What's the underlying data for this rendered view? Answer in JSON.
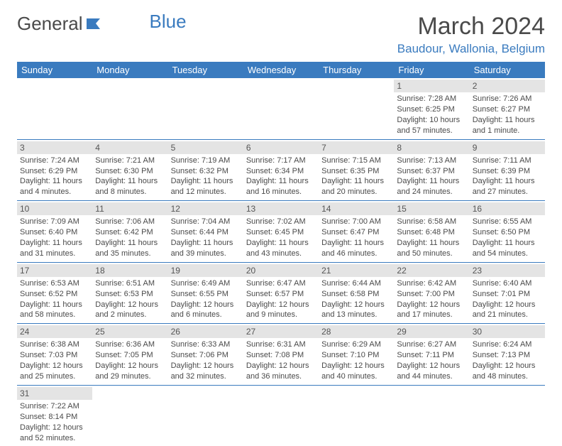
{
  "logo": {
    "text1": "General",
    "text2": "Blue"
  },
  "title": "March 2024",
  "location": "Baudour, Wallonia, Belgium",
  "colors": {
    "header_bg": "#3a7bbf",
    "header_text": "#ffffff",
    "daynum_bg": "#e4e4e4",
    "border": "#3a7bbf",
    "text": "#4a4a4a",
    "accent": "#3a7bbf"
  },
  "weekdays": [
    "Sunday",
    "Monday",
    "Tuesday",
    "Wednesday",
    "Thursday",
    "Friday",
    "Saturday"
  ],
  "weeks": [
    [
      null,
      null,
      null,
      null,
      null,
      {
        "n": "1",
        "sr": "Sunrise: 7:28 AM",
        "ss": "Sunset: 6:25 PM",
        "d1": "Daylight: 10 hours",
        "d2": "and 57 minutes."
      },
      {
        "n": "2",
        "sr": "Sunrise: 7:26 AM",
        "ss": "Sunset: 6:27 PM",
        "d1": "Daylight: 11 hours",
        "d2": "and 1 minute."
      }
    ],
    [
      {
        "n": "3",
        "sr": "Sunrise: 7:24 AM",
        "ss": "Sunset: 6:29 PM",
        "d1": "Daylight: 11 hours",
        "d2": "and 4 minutes."
      },
      {
        "n": "4",
        "sr": "Sunrise: 7:21 AM",
        "ss": "Sunset: 6:30 PM",
        "d1": "Daylight: 11 hours",
        "d2": "and 8 minutes."
      },
      {
        "n": "5",
        "sr": "Sunrise: 7:19 AM",
        "ss": "Sunset: 6:32 PM",
        "d1": "Daylight: 11 hours",
        "d2": "and 12 minutes."
      },
      {
        "n": "6",
        "sr": "Sunrise: 7:17 AM",
        "ss": "Sunset: 6:34 PM",
        "d1": "Daylight: 11 hours",
        "d2": "and 16 minutes."
      },
      {
        "n": "7",
        "sr": "Sunrise: 7:15 AM",
        "ss": "Sunset: 6:35 PM",
        "d1": "Daylight: 11 hours",
        "d2": "and 20 minutes."
      },
      {
        "n": "8",
        "sr": "Sunrise: 7:13 AM",
        "ss": "Sunset: 6:37 PM",
        "d1": "Daylight: 11 hours",
        "d2": "and 24 minutes."
      },
      {
        "n": "9",
        "sr": "Sunrise: 7:11 AM",
        "ss": "Sunset: 6:39 PM",
        "d1": "Daylight: 11 hours",
        "d2": "and 27 minutes."
      }
    ],
    [
      {
        "n": "10",
        "sr": "Sunrise: 7:09 AM",
        "ss": "Sunset: 6:40 PM",
        "d1": "Daylight: 11 hours",
        "d2": "and 31 minutes."
      },
      {
        "n": "11",
        "sr": "Sunrise: 7:06 AM",
        "ss": "Sunset: 6:42 PM",
        "d1": "Daylight: 11 hours",
        "d2": "and 35 minutes."
      },
      {
        "n": "12",
        "sr": "Sunrise: 7:04 AM",
        "ss": "Sunset: 6:44 PM",
        "d1": "Daylight: 11 hours",
        "d2": "and 39 minutes."
      },
      {
        "n": "13",
        "sr": "Sunrise: 7:02 AM",
        "ss": "Sunset: 6:45 PM",
        "d1": "Daylight: 11 hours",
        "d2": "and 43 minutes."
      },
      {
        "n": "14",
        "sr": "Sunrise: 7:00 AM",
        "ss": "Sunset: 6:47 PM",
        "d1": "Daylight: 11 hours",
        "d2": "and 46 minutes."
      },
      {
        "n": "15",
        "sr": "Sunrise: 6:58 AM",
        "ss": "Sunset: 6:48 PM",
        "d1": "Daylight: 11 hours",
        "d2": "and 50 minutes."
      },
      {
        "n": "16",
        "sr": "Sunrise: 6:55 AM",
        "ss": "Sunset: 6:50 PM",
        "d1": "Daylight: 11 hours",
        "d2": "and 54 minutes."
      }
    ],
    [
      {
        "n": "17",
        "sr": "Sunrise: 6:53 AM",
        "ss": "Sunset: 6:52 PM",
        "d1": "Daylight: 11 hours",
        "d2": "and 58 minutes."
      },
      {
        "n": "18",
        "sr": "Sunrise: 6:51 AM",
        "ss": "Sunset: 6:53 PM",
        "d1": "Daylight: 12 hours",
        "d2": "and 2 minutes."
      },
      {
        "n": "19",
        "sr": "Sunrise: 6:49 AM",
        "ss": "Sunset: 6:55 PM",
        "d1": "Daylight: 12 hours",
        "d2": "and 6 minutes."
      },
      {
        "n": "20",
        "sr": "Sunrise: 6:47 AM",
        "ss": "Sunset: 6:57 PM",
        "d1": "Daylight: 12 hours",
        "d2": "and 9 minutes."
      },
      {
        "n": "21",
        "sr": "Sunrise: 6:44 AM",
        "ss": "Sunset: 6:58 PM",
        "d1": "Daylight: 12 hours",
        "d2": "and 13 minutes."
      },
      {
        "n": "22",
        "sr": "Sunrise: 6:42 AM",
        "ss": "Sunset: 7:00 PM",
        "d1": "Daylight: 12 hours",
        "d2": "and 17 minutes."
      },
      {
        "n": "23",
        "sr": "Sunrise: 6:40 AM",
        "ss": "Sunset: 7:01 PM",
        "d1": "Daylight: 12 hours",
        "d2": "and 21 minutes."
      }
    ],
    [
      {
        "n": "24",
        "sr": "Sunrise: 6:38 AM",
        "ss": "Sunset: 7:03 PM",
        "d1": "Daylight: 12 hours",
        "d2": "and 25 minutes."
      },
      {
        "n": "25",
        "sr": "Sunrise: 6:36 AM",
        "ss": "Sunset: 7:05 PM",
        "d1": "Daylight: 12 hours",
        "d2": "and 29 minutes."
      },
      {
        "n": "26",
        "sr": "Sunrise: 6:33 AM",
        "ss": "Sunset: 7:06 PM",
        "d1": "Daylight: 12 hours",
        "d2": "and 32 minutes."
      },
      {
        "n": "27",
        "sr": "Sunrise: 6:31 AM",
        "ss": "Sunset: 7:08 PM",
        "d1": "Daylight: 12 hours",
        "d2": "and 36 minutes."
      },
      {
        "n": "28",
        "sr": "Sunrise: 6:29 AM",
        "ss": "Sunset: 7:10 PM",
        "d1": "Daylight: 12 hours",
        "d2": "and 40 minutes."
      },
      {
        "n": "29",
        "sr": "Sunrise: 6:27 AM",
        "ss": "Sunset: 7:11 PM",
        "d1": "Daylight: 12 hours",
        "d2": "and 44 minutes."
      },
      {
        "n": "30",
        "sr": "Sunrise: 6:24 AM",
        "ss": "Sunset: 7:13 PM",
        "d1": "Daylight: 12 hours",
        "d2": "and 48 minutes."
      }
    ],
    [
      {
        "n": "31",
        "sr": "Sunrise: 7:22 AM",
        "ss": "Sunset: 8:14 PM",
        "d1": "Daylight: 12 hours",
        "d2": "and 52 minutes."
      },
      null,
      null,
      null,
      null,
      null,
      null
    ]
  ]
}
